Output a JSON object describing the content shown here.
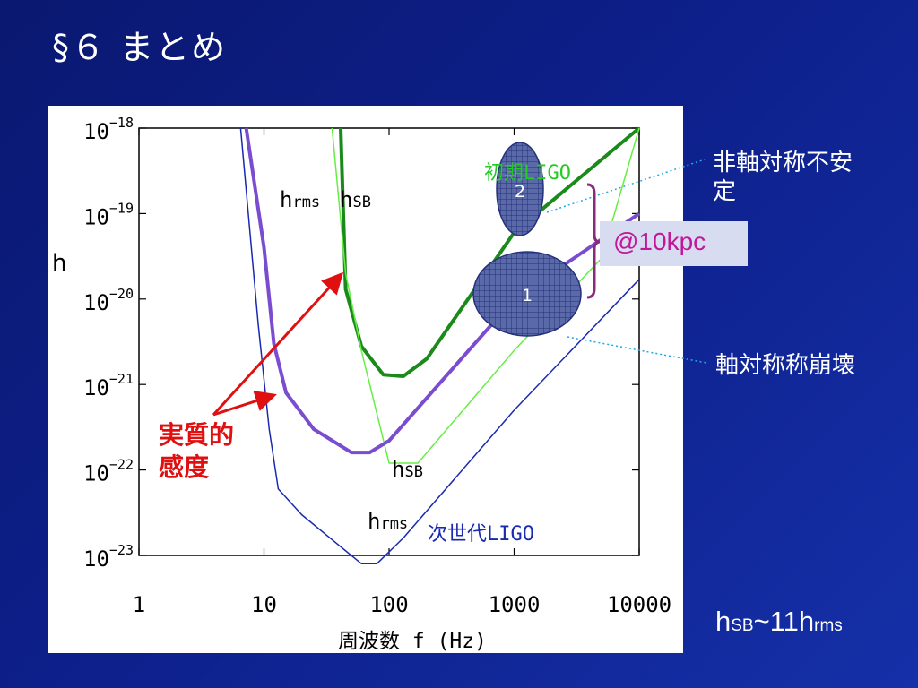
{
  "slide": {
    "title": "§６ まとめ",
    "label_nonaxisymmetric": "非軸対称不安定",
    "label_axisymmetric": "軸対称称崩壊",
    "distance": "@10kpc",
    "summary_h": "h",
    "summary_sb": "SB",
    "summary_mid": "~11h",
    "summary_rms": "rms",
    "colors": {
      "background": "#0d1f8a",
      "green": "#1a8a1a",
      "purple": "#7a4cd0",
      "blue": "#1a2ab0",
      "red": "#e01010",
      "bracket": "#8a2a7a"
    }
  },
  "chart_data": {
    "type": "line",
    "xscale": "log",
    "yscale": "log",
    "xlim": [
      1,
      10000
    ],
    "ylim": [
      1e-23,
      1e-18
    ],
    "xlabel": "周波数 f (Hz)",
    "ylabel": "h",
    "xtick_labels": [
      "1",
      "10",
      "100",
      "1000",
      "10000"
    ],
    "ytick_labels": [
      {
        "base": "10",
        "exp": "−18"
      },
      {
        "base": "10",
        "exp": "−19"
      },
      {
        "base": "10",
        "exp": "−20"
      },
      {
        "base": "10",
        "exp": "−21"
      },
      {
        "base": "10",
        "exp": "−22"
      },
      {
        "base": "10",
        "exp": "−23"
      }
    ],
    "series": [
      {
        "name": "初期LIGO",
        "style": "thick",
        "color": "#1a8a1a",
        "points": [
          [
            41,
            1e-18
          ],
          [
            45,
            1.3e-20
          ],
          [
            60,
            2.8e-21
          ],
          [
            90,
            1.3e-21
          ],
          [
            130,
            1.25e-21
          ],
          [
            200,
            2e-21
          ],
          [
            1000,
            6e-20
          ],
          [
            10000,
            1e-18
          ]
        ]
      },
      {
        "style": "thin",
        "color": "#66ee44",
        "points": [
          [
            35,
            1e-18
          ],
          [
            45,
            2e-20
          ],
          [
            60,
            2.5e-21
          ],
          [
            100,
            1.2e-22
          ],
          [
            170,
            1.2e-22
          ],
          [
            1000,
            2.5e-21
          ],
          [
            5000,
            3e-20
          ],
          [
            10000,
            1e-18
          ]
        ]
      },
      {
        "style": "thick",
        "color": "#7a4cd0",
        "points": [
          [
            7.2,
            1e-18
          ],
          [
            10,
            4e-20
          ],
          [
            12,
            3e-21
          ],
          [
            15,
            8e-22
          ],
          [
            25,
            3e-22
          ],
          [
            50,
            1.6e-22
          ],
          [
            70,
            1.6e-22
          ],
          [
            100,
            2.2e-22
          ],
          [
            1000,
            1e-20
          ],
          [
            10000,
            1e-19
          ]
        ]
      },
      {
        "name": "次世代LIGO",
        "style": "thin",
        "color": "#1a2ab0",
        "points": [
          [
            6.5,
            1e-18
          ],
          [
            9,
            5e-21
          ],
          [
            11,
            3e-22
          ],
          [
            13,
            6e-23
          ],
          [
            20,
            3e-23
          ],
          [
            40,
            1.3e-23
          ],
          [
            60,
            8e-24
          ],
          [
            80,
            8e-24
          ],
          [
            130,
            1.6e-23
          ],
          [
            1000,
            5e-22
          ],
          [
            10000,
            1.7e-20
          ]
        ]
      }
    ],
    "annotations": [
      {
        "h": "h",
        "sub": "rms"
      },
      {
        "h": "h",
        "sub": "SB"
      },
      {
        "h": "h",
        "sub": "SB"
      },
      {
        "h": "h",
        "sub": "rms"
      },
      {
        "text": "初期LIGO",
        "color": "#22cc22"
      },
      {
        "text": "次世代LIGO",
        "color": "#1a2ab0"
      },
      {
        "text": "実質的感度",
        "color": "#e01010"
      }
    ],
    "regions": [
      {
        "label": "2",
        "desc": "非軸対称不安定"
      },
      {
        "label": "1",
        "desc": "軸対称称崩壊"
      }
    ]
  }
}
